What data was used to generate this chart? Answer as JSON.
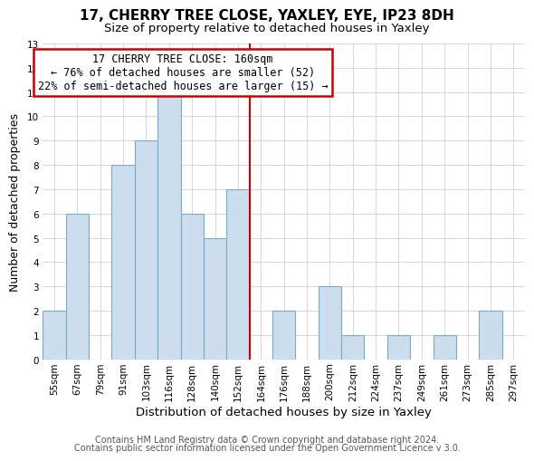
{
  "title": "17, CHERRY TREE CLOSE, YAXLEY, EYE, IP23 8DH",
  "subtitle": "Size of property relative to detached houses in Yaxley",
  "xlabel": "Distribution of detached houses by size in Yaxley",
  "ylabel": "Number of detached properties",
  "bin_labels": [
    "55sqm",
    "67sqm",
    "79sqm",
    "91sqm",
    "103sqm",
    "116sqm",
    "128sqm",
    "140sqm",
    "152sqm",
    "164sqm",
    "176sqm",
    "188sqm",
    "200sqm",
    "212sqm",
    "224sqm",
    "237sqm",
    "249sqm",
    "261sqm",
    "273sqm",
    "285sqm",
    "297sqm"
  ],
  "bar_values": [
    2,
    6,
    0,
    8,
    9,
    11,
    6,
    5,
    7,
    0,
    2,
    0,
    3,
    1,
    0,
    1,
    0,
    1,
    0,
    2,
    0
  ],
  "bar_color": "#ccdded",
  "bar_edge_color": "#7aaac8",
  "annotation_title": "17 CHERRY TREE CLOSE: 160sqm",
  "annotation_line1": "← 76% of detached houses are smaller (52)",
  "annotation_line2": "22% of semi-detached houses are larger (15) →",
  "annotation_box_color": "#ffffff",
  "annotation_box_edge_color": "#cc0000",
  "ref_line_color": "#cc0000",
  "ylim": [
    0,
    13
  ],
  "yticks": [
    0,
    1,
    2,
    3,
    4,
    5,
    6,
    7,
    8,
    9,
    10,
    11,
    12,
    13
  ],
  "footer1": "Contains HM Land Registry data © Crown copyright and database right 2024.",
  "footer2": "Contains public sector information licensed under the Open Government Licence v 3.0.",
  "title_fontsize": 11,
  "subtitle_fontsize": 9.5,
  "xlabel_fontsize": 9.5,
  "ylabel_fontsize": 9,
  "tick_fontsize": 7.5,
  "annotation_fontsize": 8.5,
  "footer_fontsize": 7
}
